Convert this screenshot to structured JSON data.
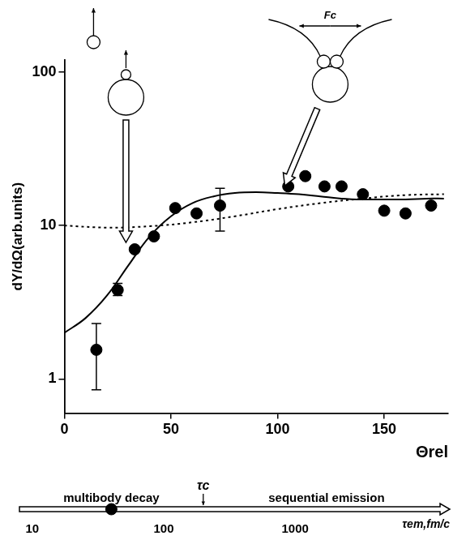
{
  "chart_data": [
    {
      "type": "scatter",
      "y_label": "dY/dΩ(arb.units)",
      "x_label": "Θrel",
      "log": "y",
      "grid": false,
      "xlim": [
        0,
        180
      ],
      "xticks": [
        0,
        50,
        100,
        150
      ],
      "ylim": [
        0.6,
        120
      ],
      "yticks": [
        1,
        10,
        100
      ],
      "annotations": [
        {
          "text": "Fc"
        }
      ],
      "series": [
        {
          "type": "scatter",
          "marker": "circle",
          "color": "#000000",
          "x": [
            15,
            25,
            33,
            42,
            52,
            62,
            73,
            105,
            113,
            122,
            130,
            140,
            150,
            160,
            172
          ],
          "values": [
            1.55,
            3.8,
            7,
            8.5,
            13,
            12,
            13.5,
            18,
            21,
            18,
            18,
            16,
            12.5,
            12,
            13.5
          ],
          "error_low": [
            0.85,
            3.5,
            null,
            null,
            null,
            null,
            9.2,
            null,
            null,
            null,
            null,
            null,
            null,
            null,
            null
          ],
          "error_high": [
            2.3,
            4.2,
            null,
            null,
            null,
            null,
            17.5,
            null,
            null,
            null,
            null,
            null,
            null,
            null,
            null
          ]
        },
        {
          "type": "line",
          "line_style": "solid",
          "color": "#000000",
          "x": [
            0,
            10,
            20,
            30,
            40,
            50,
            60,
            70,
            80,
            90,
            100,
            110,
            120,
            130,
            140,
            150,
            160,
            170,
            178
          ],
          "values": [
            2,
            2.5,
            3.5,
            5.5,
            8.5,
            11.5,
            14,
            15.5,
            16.3,
            16.5,
            16.3,
            16,
            15.5,
            15,
            14.8,
            14.8,
            14.8,
            15,
            15
          ]
        },
        {
          "type": "line",
          "line_style": "dotted",
          "color": "#000000",
          "x": [
            0,
            20,
            40,
            60,
            80,
            100,
            120,
            140,
            160,
            178
          ],
          "values": [
            10,
            9.7,
            9.9,
            10.5,
            11.5,
            12.8,
            14,
            15,
            15.8,
            16
          ]
        }
      ]
    },
    {
      "type": "scatter",
      "x_label": "τem,fm/c",
      "log": "x",
      "grid": false,
      "tick_labels": "x",
      "xlim": [
        8,
        15000
      ],
      "xticks": [
        10,
        100,
        1000
      ],
      "x": [
        40
      ],
      "marker": "circle",
      "color": "#000000",
      "annotations": [
        {
          "text": "multibody decay"
        },
        {
          "text": "τc",
          "x": 200
        },
        {
          "text": "sequential emission"
        }
      ]
    }
  ]
}
